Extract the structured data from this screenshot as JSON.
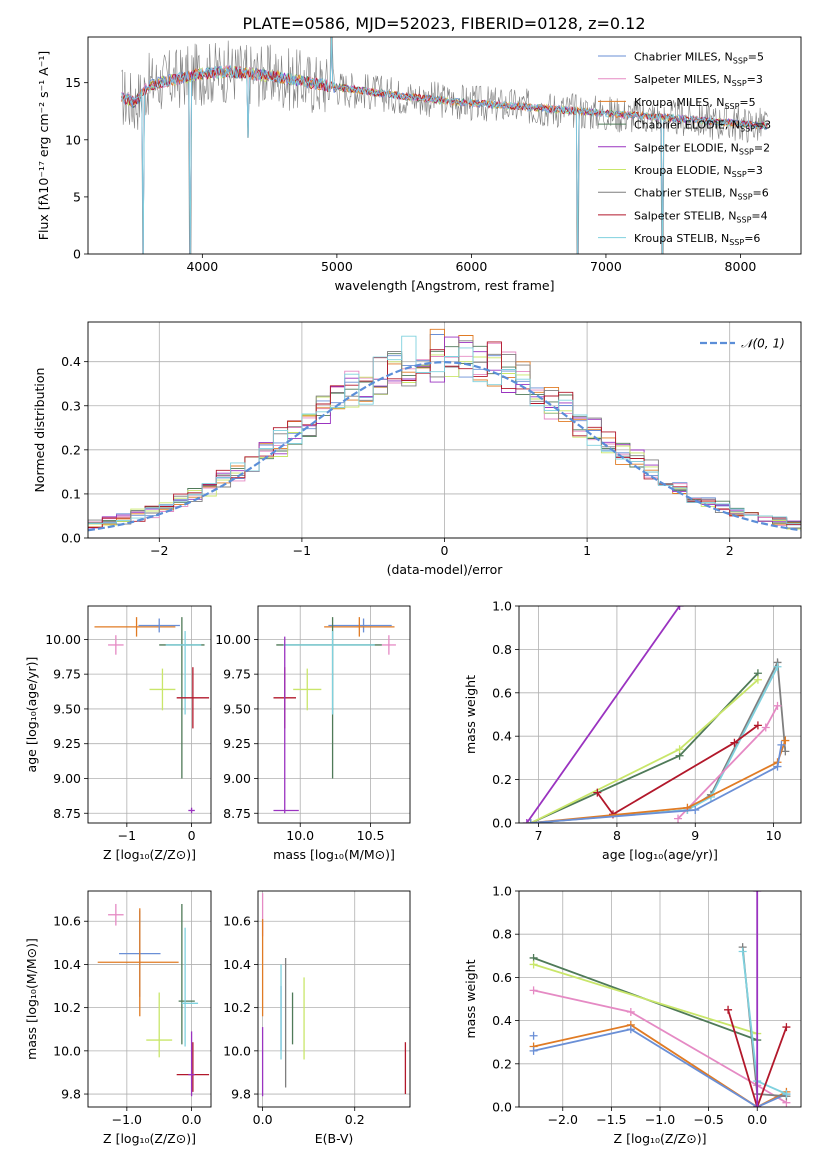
{
  "figure_title": "PLATE=0586, MJD=52023, FIBERID=0128, z=0.12",
  "colors": {
    "blue": "#6a8fd6",
    "pink": "#e58ac4",
    "orange": "#e07b24",
    "darkgreen": "#4f7a58",
    "purple": "#9a33c0",
    "yellowgreen": "#c9e66a",
    "gray": "#7f7f7f",
    "red": "#b2182b",
    "cyan": "#7fd1de",
    "normal": "#5b8ed8",
    "grid": "#b0b0b0"
  },
  "chart_data": [
    {
      "id": "spectrum",
      "type": "line",
      "xlabel": "wavelength [Angstrom, rest frame]",
      "ylabel": "Flux [fλ10⁻¹⁷ erg cm⁻² s⁻¹ A⁻¹]",
      "xlim": [
        3150,
        8450
      ],
      "ylim": [
        0,
        19
      ],
      "xticks": [
        4000,
        5000,
        6000,
        7000,
        8000
      ],
      "yticks": [
        0,
        5,
        10,
        15
      ],
      "grid": false,
      "legend_position": "top-right",
      "legend": [
        {
          "label": "Chabrier MILES, N_SSP=5",
          "color": "blue"
        },
        {
          "label": "Salpeter MILES, N_SSP=3",
          "color": "pink"
        },
        {
          "label": "Kroupa MILES, N_SSP=5",
          "color": "orange"
        },
        {
          "label": "Chabrier ELODIE, N_SSP=3",
          "color": "darkgreen"
        },
        {
          "label": "Salpeter ELODIE, N_SSP=2",
          "color": "purple"
        },
        {
          "label": "Kroupa ELODIE, N_SSP=3",
          "color": "yellowgreen"
        },
        {
          "label": "Chabrier STELIB, N_SSP=6",
          "color": "gray"
        },
        {
          "label": "Salpeter STELIB, N_SSP=4",
          "color": "red"
        },
        {
          "label": "Kroupa STELIB, N_SSP=6",
          "color": "cyan"
        }
      ],
      "continuum": {
        "x": [
          3400,
          3500,
          3600,
          3800,
          4000,
          4200,
          4500,
          5000,
          5500,
          6000,
          6500,
          7000,
          7400,
          7800,
          8200
        ],
        "y": [
          13.8,
          13.2,
          14.8,
          15.3,
          15.8,
          16.0,
          15.6,
          14.6,
          13.8,
          13.2,
          12.8,
          12.3,
          12.0,
          11.6,
          11.2
        ]
      },
      "noise_amplitude": 1.3,
      "spikes": [
        {
          "x": 3560,
          "y": 0
        },
        {
          "x": 3910,
          "y": 0
        },
        {
          "x": 4340,
          "y": 10.2
        },
        {
          "x": 4960,
          "y": 19
        },
        {
          "x": 6790,
          "y": 0
        },
        {
          "x": 7420,
          "y": 0
        }
      ]
    },
    {
      "id": "residuals",
      "type": "histogram",
      "xlabel": "(data-model)/error",
      "ylabel": "Normed distribution",
      "xlim": [
        -2.5,
        2.5
      ],
      "ylim": [
        0,
        0.49
      ],
      "xticks": [
        -2,
        -1,
        0,
        1,
        2
      ],
      "yticks": [
        0.0,
        0.1,
        0.2,
        0.3,
        0.4
      ],
      "grid": true,
      "bin_width": 0.1,
      "legend_position": "top-right",
      "legend": [
        {
          "label": "𝒩(0, 1)",
          "color": "normal",
          "style": "dashed"
        }
      ],
      "series_colors": [
        "blue",
        "pink",
        "orange",
        "darkgreen",
        "purple",
        "yellowgreen",
        "gray",
        "red",
        "cyan"
      ]
    },
    {
      "id": "age_vs_Z",
      "type": "errorbar",
      "xlabel": "Z [log₁₀(Z/Z⊙)]",
      "ylabel": "age  [log₁₀(age/yr)]",
      "xlim": [
        -1.6,
        0.3
      ],
      "ylim": [
        8.68,
        10.24
      ],
      "xticks": [
        -1,
        0
      ],
      "yticks": [
        8.75,
        9.0,
        9.25,
        9.5,
        9.75,
        10.0
      ],
      "grid": true,
      "points": [
        {
          "color": "orange",
          "x": -0.85,
          "y": 10.09,
          "xerr": [
            0.65,
            0.6
          ],
          "yerr": [
            0.07,
            0.07
          ]
        },
        {
          "color": "pink",
          "x": -1.17,
          "y": 9.96,
          "xerr": [
            0.12,
            0.12
          ],
          "yerr": [
            0.07,
            0.07
          ]
        },
        {
          "color": "blue",
          "x": -0.5,
          "y": 10.1,
          "xerr": [
            0.32,
            0.32
          ],
          "yerr": [
            0.05,
            0.05
          ]
        },
        {
          "color": "darkgreen",
          "x": -0.15,
          "y": 9.96,
          "xerr": [
            0.35,
            0.35
          ],
          "yerr": [
            0.96,
            0.2
          ]
        },
        {
          "color": "cyan",
          "x": -0.1,
          "y": 9.96,
          "xerr": [
            0.3,
            0.25
          ],
          "yerr": [
            0.5,
            0.1
          ]
        },
        {
          "color": "yellowgreen",
          "x": -0.45,
          "y": 9.64,
          "xerr": [
            0.2,
            0.2
          ],
          "yerr": [
            0.15,
            0.15
          ]
        },
        {
          "color": "red",
          "x": 0.02,
          "y": 9.58,
          "xerr": [
            0.25,
            0.25
          ],
          "yerr": [
            0.22,
            0.22
          ]
        },
        {
          "color": "purple",
          "x": 0.0,
          "y": 8.77,
          "xerr": [
            0.05,
            0.05
          ],
          "yerr": [
            0.02,
            0.02
          ]
        }
      ]
    },
    {
      "id": "age_vs_mass",
      "type": "errorbar",
      "xlabel": "mass [log₁₀(M/M⊙)]",
      "ylabel": "",
      "xlim": [
        9.7,
        10.78
      ],
      "ylim": [
        8.68,
        10.24
      ],
      "xticks": [
        10.0,
        10.5
      ],
      "yticks": [
        8.75,
        9.0,
        9.25,
        9.5,
        9.75,
        10.0
      ],
      "grid": true,
      "points": [
        {
          "color": "blue",
          "x": 10.45,
          "y": 10.1,
          "xerr": [
            0.25,
            0.2
          ],
          "yerr": [
            0.05,
            0.05
          ]
        },
        {
          "color": "orange",
          "x": 10.42,
          "y": 10.09,
          "xerr": [
            0.25,
            0.25
          ],
          "yerr": [
            0.07,
            0.07
          ]
        },
        {
          "color": "pink",
          "x": 10.63,
          "y": 9.96,
          "xerr": [
            0.05,
            0.05
          ],
          "yerr": [
            0.07,
            0.07
          ]
        },
        {
          "color": "darkgreen",
          "x": 10.23,
          "y": 9.96,
          "xerr": [
            0.4,
            0.35
          ],
          "yerr": [
            0.96,
            0.2
          ]
        },
        {
          "color": "cyan",
          "x": 10.23,
          "y": 9.96,
          "xerr": [
            0.35,
            0.3
          ],
          "yerr": [
            0.5,
            0.1
          ]
        },
        {
          "color": "yellowgreen",
          "x": 10.05,
          "y": 9.64,
          "xerr": [
            0.1,
            0.1
          ],
          "yerr": [
            0.15,
            0.15
          ]
        },
        {
          "color": "red",
          "x": 9.89,
          "y": 9.58,
          "xerr": [
            0.08,
            0.08
          ],
          "yerr": [
            0.22,
            0.22
          ]
        },
        {
          "color": "purple",
          "x": 9.89,
          "y": 8.77,
          "xerr": [
            0.08,
            0.1
          ],
          "yerr": [
            0.02,
            1.25
          ]
        }
      ]
    },
    {
      "id": "mass_weight_vs_age",
      "type": "line",
      "xlabel": "age  [log₁₀(age/yr)]",
      "ylabel": "mass weight",
      "xlim": [
        6.75,
        10.35
      ],
      "ylim": [
        0,
        1.0
      ],
      "xticks": [
        7,
        8,
        9,
        10
      ],
      "yticks": [
        0.0,
        0.2,
        0.4,
        0.6,
        0.8,
        1.0
      ],
      "grid": true,
      "series": [
        {
          "color": "purple",
          "x": [
            6.85,
            8.8
          ],
          "y": [
            0.0,
            1.0
          ]
        },
        {
          "color": "darkgreen",
          "x": [
            6.9,
            8.8,
            9.8
          ],
          "y": [
            0.0,
            0.31,
            0.69
          ]
        },
        {
          "color": "yellowgreen",
          "x": [
            6.9,
            8.8,
            9.8
          ],
          "y": [
            0.0,
            0.34,
            0.66
          ]
        },
        {
          "color": "gray",
          "x": [
            6.9,
            8.9,
            9.2,
            10.05,
            10.15
          ],
          "y": [
            0.0,
            0.06,
            0.13,
            0.74,
            0.33
          ]
        },
        {
          "color": "cyan",
          "x": [
            6.9,
            8.9,
            9.2,
            10.05
          ],
          "y": [
            0.0,
            0.06,
            0.12,
            0.72
          ]
        },
        {
          "color": "red",
          "x": [
            7.75,
            7.95,
            9.5,
            9.8
          ],
          "y": [
            0.14,
            0.04,
            0.37,
            0.45
          ]
        },
        {
          "color": "pink",
          "x": [
            8.78,
            9.9,
            10.05
          ],
          "y": [
            0.02,
            0.44,
            0.54
          ]
        },
        {
          "color": "orange",
          "x": [
            6.9,
            8.9,
            10.05,
            10.15
          ],
          "y": [
            0.0,
            0.07,
            0.28,
            0.38
          ]
        },
        {
          "color": "blue",
          "x": [
            6.9,
            9.0,
            10.05,
            10.1
          ],
          "y": [
            0.0,
            0.06,
            0.26,
            0.36
          ]
        }
      ]
    },
    {
      "id": "mass_vs_Z",
      "type": "errorbar",
      "xlabel": "Z [log₁₀(Z/Z⊙)]",
      "ylabel": "mass [log₁₀(M/M⊙)]",
      "xlim": [
        -1.6,
        0.3
      ],
      "ylim": [
        9.74,
        10.74
      ],
      "xticks": [
        -1,
        0
      ],
      "yticks": [
        9.8,
        10.0,
        10.2,
        10.4,
        10.6
      ],
      "grid": true,
      "points": [
        {
          "color": "pink",
          "x": -1.17,
          "y": 10.63,
          "xerr": [
            0.12,
            0.12
          ],
          "yerr": [
            0.05,
            0.05
          ]
        },
        {
          "color": "blue",
          "x": -0.8,
          "y": 10.45,
          "xerr": [
            0.32,
            0.32
          ],
          "yerr": [
            0.2,
            0.2
          ]
        },
        {
          "color": "orange",
          "x": -0.8,
          "y": 10.41,
          "xerr": [
            0.65,
            0.6
          ],
          "yerr": [
            0.25,
            0.25
          ]
        },
        {
          "color": "darkgreen",
          "x": -0.15,
          "y": 10.23,
          "xerr": [
            0.05,
            0.2
          ],
          "yerr": [
            0.2,
            0.45
          ]
        },
        {
          "color": "cyan",
          "x": -0.1,
          "y": 10.22,
          "xerr": [
            0.05,
            0.2
          ],
          "yerr": [
            0.2,
            0.35
          ]
        },
        {
          "color": "yellowgreen",
          "x": -0.5,
          "y": 10.05,
          "xerr": [
            0.2,
            0.2
          ],
          "yerr": [
            0.08,
            0.22
          ]
        },
        {
          "color": "red",
          "x": 0.02,
          "y": 9.89,
          "xerr": [
            0.25,
            0.25
          ],
          "yerr": [
            0.08,
            0.15
          ]
        },
        {
          "color": "purple",
          "x": 0.0,
          "y": 9.89,
          "xerr": [
            0.05,
            0.05
          ],
          "yerr": [
            0.1,
            0.2
          ]
        }
      ]
    },
    {
      "id": "mass_vs_ebv",
      "type": "errorbar",
      "xlabel": "E(B-V)",
      "ylabel": "",
      "xlim": [
        -0.01,
        0.32
      ],
      "ylim": [
        9.74,
        10.74
      ],
      "xticks": [
        0.0,
        0.2
      ],
      "yticks": [
        9.8,
        10.0,
        10.2,
        10.4,
        10.6
      ],
      "grid": true,
      "points": [
        {
          "color": "pink",
          "x": 0.0,
          "y": 10.63,
          "xerr": [
            0,
            0
          ],
          "yerr": [
            0.1,
            0.1
          ]
        },
        {
          "color": "orange",
          "x": 0.0,
          "y": 10.41,
          "xerr": [
            0,
            0
          ],
          "yerr": [
            0.25,
            0.2
          ]
        },
        {
          "color": "purple",
          "x": 0.0,
          "y": 9.89,
          "xerr": [
            0,
            0
          ],
          "yerr": [
            0.1,
            0.22
          ]
        },
        {
          "color": "blue",
          "x": 0.04,
          "y": 10.15,
          "xerr": [
            0,
            0
          ],
          "yerr": [
            0.15,
            0.15
          ]
        },
        {
          "color": "cyan",
          "x": 0.04,
          "y": 10.18,
          "xerr": [
            0,
            0
          ],
          "yerr": [
            0.22,
            0.22
          ]
        },
        {
          "color": "gray",
          "x": 0.05,
          "y": 10.13,
          "xerr": [
            0,
            0
          ],
          "yerr": [
            0.3,
            0.3
          ]
        },
        {
          "color": "darkgreen",
          "x": 0.065,
          "y": 10.15,
          "xerr": [
            0,
            0
          ],
          "yerr": [
            0.12,
            0.12
          ]
        },
        {
          "color": "yellowgreen",
          "x": 0.09,
          "y": 10.15,
          "xerr": [
            0,
            0
          ],
          "yerr": [
            0.19,
            0.19
          ]
        },
        {
          "color": "red",
          "x": 0.31,
          "y": 9.92,
          "xerr": [
            0,
            0
          ],
          "yerr": [
            0.12,
            0.12
          ]
        }
      ]
    },
    {
      "id": "mass_weight_vs_Z",
      "type": "line",
      "xlabel": "Z [log₁₀(Z/Z⊙)]",
      "ylabel": "mass weight",
      "xlim": [
        -2.45,
        0.45
      ],
      "ylim": [
        0,
        1.0
      ],
      "xticks": [
        -2.0,
        -1.5,
        -1.0,
        -0.5,
        0.0
      ],
      "yticks": [
        0.0,
        0.2,
        0.4,
        0.6,
        0.8,
        1.0
      ],
      "grid": true,
      "series": [
        {
          "color": "darkgreen",
          "x": [
            -2.3,
            0.0
          ],
          "y": [
            0.69,
            0.31
          ]
        },
        {
          "color": "yellowgreen",
          "x": [
            -2.3,
            0.0
          ],
          "y": [
            0.66,
            0.34
          ]
        },
        {
          "color": "pink",
          "x": [
            -2.3,
            -1.3,
            0.0,
            0.3
          ],
          "y": [
            0.54,
            0.44,
            0.1,
            0.02
          ]
        },
        {
          "color": "orange",
          "x": [
            -2.3,
            -1.3,
            0.0,
            0.3
          ],
          "y": [
            0.28,
            0.38,
            0.0,
            0.07
          ]
        },
        {
          "color": "blue",
          "x": [
            -2.3,
            -1.3,
            0.0,
            0.3
          ],
          "y": [
            0.26,
            0.36,
            0.0,
            0.06
          ]
        },
        {
          "color": "gray",
          "x": [
            -0.15,
            0.0,
            0.3
          ],
          "y": [
            0.74,
            0.06,
            0.05
          ]
        },
        {
          "color": "cyan",
          "x": [
            -0.15,
            0.0,
            0.3
          ],
          "y": [
            0.72,
            0.12,
            0.06
          ]
        },
        {
          "color": "red",
          "x": [
            -0.3,
            0.0,
            0.3
          ],
          "y": [
            0.45,
            0.0,
            0.37
          ]
        },
        {
          "color": "purple",
          "x": [
            0.0,
            0.0
          ],
          "y": [
            1.0,
            0.0
          ]
        }
      ],
      "extra_markers": [
        {
          "color": "blue",
          "x": -2.3,
          "y": 0.33
        }
      ]
    }
  ]
}
